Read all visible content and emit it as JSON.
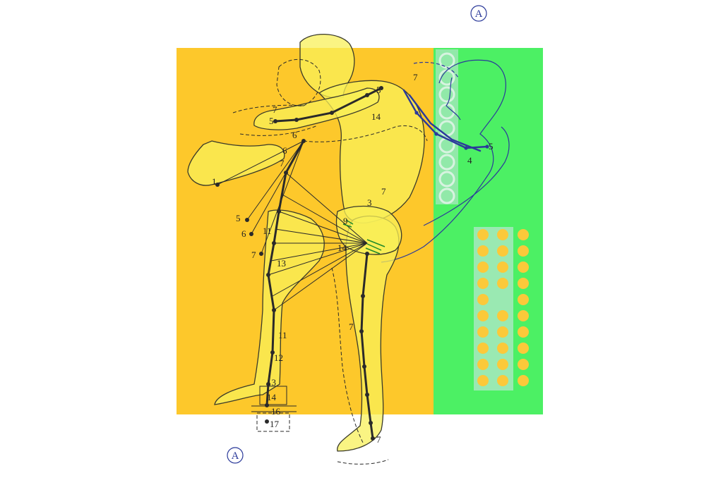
{
  "colors": {
    "orange_panel": "#fdc82b",
    "green_panel": "#4cf064",
    "figure_fill": "#f8f05a",
    "figure_line": "#3a3a2a",
    "ink_dark": "#2a2a2a",
    "ink_blue": "#2b3a9a",
    "ink_green": "#1f8a2a",
    "dot_orange": "#fbc93a",
    "strip": "#a8e7c0"
  },
  "markers": {
    "top_right": "A",
    "bottom_left": "A"
  },
  "labels": {
    "arm_5": "5",
    "arm_6": "6",
    "upper_5": "5",
    "upper_14": "14",
    "torso_7": "7",
    "shoulder_6": "6",
    "shoulder_7": "7",
    "foot_1": "1",
    "side_5": "5",
    "side_6": "6",
    "side_7": "7",
    "mid_11": "11",
    "mid_13": "13",
    "leg_11": "11",
    "leg_12": "12",
    "leg_13": "13",
    "ankle_14": "14",
    "ankle_16": "16",
    "ankle_17": "17",
    "hip_14": "14",
    "hip_9": "9",
    "right_leg_7": "7",
    "right_foot_7": "7",
    "blue_arm_5": "5",
    "blue_arm_4": "4",
    "blue_arm_7": "7",
    "back_7": "7",
    "back_3": "3"
  }
}
